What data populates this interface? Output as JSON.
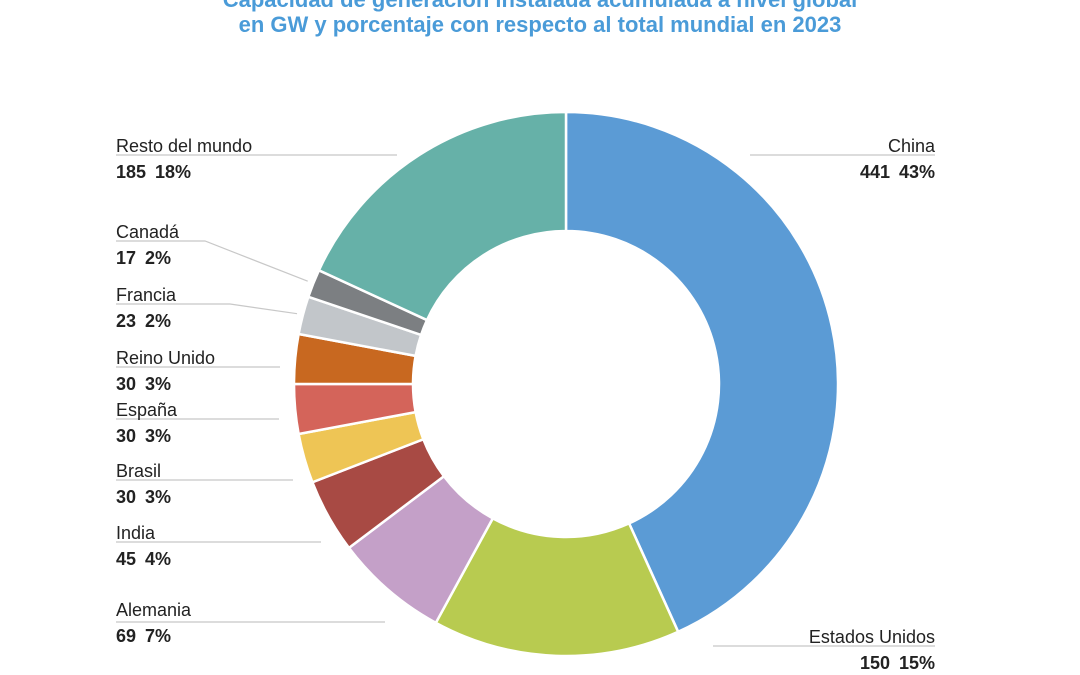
{
  "title_line1": "Capacidad de generación instalada acumulada a nivel global",
  "title_line2": "en GW y porcentaje con respecto al total mundial en 2023",
  "chart_data": {
    "type": "pie",
    "donut": true,
    "title": "Capacidad de generación instalada acumulada a nivel global en GW y porcentaje con respecto al total mundial en 2023",
    "categories": [
      "China",
      "Estados Unidos",
      "Alemania",
      "India",
      "Brasil",
      "España",
      "Reino Unido",
      "Francia",
      "Canadá",
      "Resto del mundo"
    ],
    "values": [
      441,
      150,
      69,
      45,
      30,
      30,
      30,
      23,
      17,
      185
    ],
    "percent_labels": [
      "43%",
      "15%",
      "7%",
      "4%",
      "3%",
      "3%",
      "3%",
      "2%",
      "2%",
      "18%"
    ],
    "colors": [
      "#5b9bd5",
      "#b8cb50",
      "#c4a0c8",
      "#a84a44",
      "#eec555",
      "#d4645a",
      "#c86820",
      "#c2c6ca",
      "#7c7f82",
      "#66b1a8"
    ]
  }
}
